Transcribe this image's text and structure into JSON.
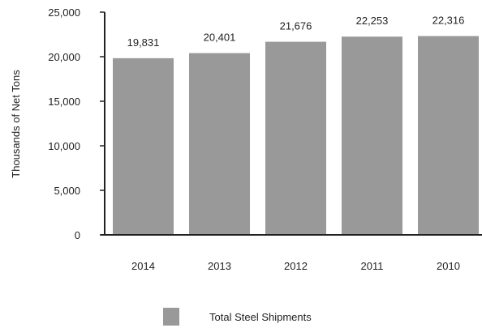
{
  "chart_data": {
    "type": "bar",
    "categories": [
      "2014",
      "2013",
      "2012",
      "2011",
      "2010"
    ],
    "series": [
      {
        "name": "Total Steel Shipments",
        "values": [
          19831,
          20401,
          21676,
          22253,
          22316
        ],
        "color": "#999999"
      }
    ],
    "data_labels": [
      "19,831",
      "20,401",
      "21,676",
      "22,253",
      "22,316"
    ],
    "ylabel": "Thousands of Net Tons",
    "ylim": [
      0,
      25000
    ],
    "yticks": [
      0,
      5000,
      10000,
      15000,
      20000,
      25000
    ],
    "ytick_labels": [
      "0",
      "5,000",
      "10,000",
      "15,000",
      "20,000",
      "25,000"
    ],
    "grid": false,
    "legend": "bottom"
  }
}
